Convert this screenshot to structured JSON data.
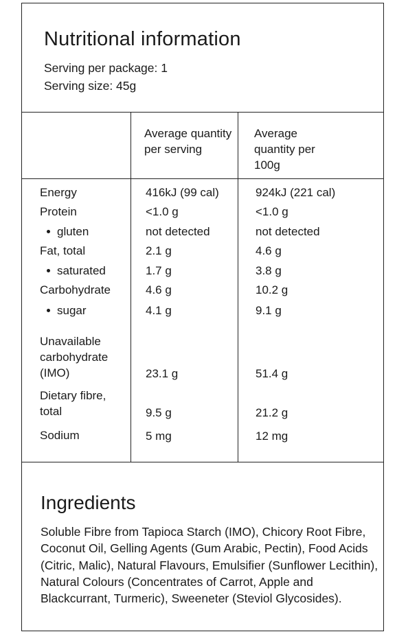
{
  "nutrition": {
    "title": "Nutritional information",
    "servings_per_package": "Serving per package: 1",
    "serving_size": "Serving size: 45g",
    "col_headers": [
      "Average quantity per serving",
      "Average quantity per 100g"
    ],
    "rows": [
      {
        "label": "Energy",
        "per_serving": "416kJ (99 cal)",
        "per_100g": "924kJ (221 cal)"
      },
      {
        "label": "Protein",
        "per_serving": "<1.0 g",
        "per_100g": "<1.0 g"
      },
      {
        "label": "gluten",
        "per_serving": "not detected",
        "per_100g": "not detected"
      },
      {
        "label": "Fat, total",
        "per_serving": "2.1 g",
        "per_100g": "4.6 g"
      },
      {
        "label": "saturated",
        "per_serving": "1.7 g",
        "per_100g": "3.8 g"
      },
      {
        "label": "Carbohydrate",
        "per_serving": "4.6 g",
        "per_100g": "10.2 g"
      },
      {
        "label": "sugar",
        "per_serving": "4.1 g",
        "per_100g": "9.1 g"
      },
      {
        "label": "Unavailable carbohydrate (IMO)",
        "per_serving": "23.1 g",
        "per_100g": "51.4 g"
      },
      {
        "label": "Dietary fibre, total",
        "per_serving": "9.5 g",
        "per_100g": "21.2 g"
      },
      {
        "label": "Sodium",
        "per_serving": "5 mg",
        "per_100g": "12 mg"
      }
    ]
  },
  "ingredients": {
    "title": "Ingredients",
    "text": "Soluble Fibre from Tapioca Starch (IMO), Chicory Root Fibre, Coconut Oil, Gelling Agents (Gum Arabic, Pectin), Food Acids (Citric, Malic), Natural Flavours, Emulsifier (Sunflower Lecithin), Natural Colours (Concentrates of Carrot, Apple and Blackcurrant, Turmeric), Sweeneter (Steviol Glycosides)."
  }
}
